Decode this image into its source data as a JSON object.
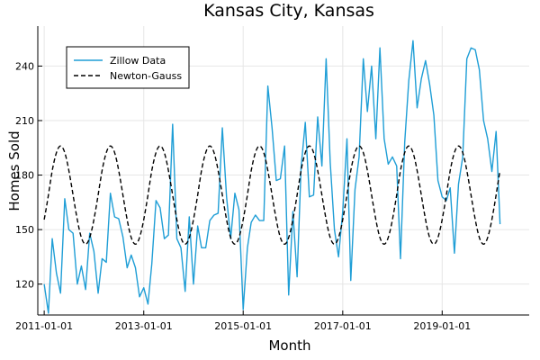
{
  "chart_data": {
    "type": "line",
    "title": "Kansas City, Kansas",
    "xlabel": "Month",
    "ylabel": "Homes Sold",
    "x_start": "2011-01-01",
    "x_step": "1 month",
    "xlim": [
      "2010-11-15",
      "2020-10-01"
    ],
    "ylim": [
      103,
      262
    ],
    "xticks": [
      "2011-01-01",
      "2013-01-01",
      "2015-01-01",
      "2017-01-01",
      "2019-01-01"
    ],
    "yticks": [
      120,
      150,
      180,
      210,
      240
    ],
    "grid": true,
    "legend_position": "top-left",
    "series": [
      {
        "name": "Zillow Data",
        "color": "#1f9ed6",
        "style": "solid",
        "values": [
          120,
          104,
          145,
          126,
          115,
          167,
          150,
          148,
          120,
          130,
          117,
          148,
          138,
          115,
          134,
          132,
          170,
          157,
          156,
          146,
          129,
          136,
          129,
          113,
          118,
          109,
          131,
          166,
          162,
          145,
          147,
          208,
          145,
          140,
          116,
          157,
          120,
          152,
          140,
          140,
          155,
          158,
          159,
          206,
          168,
          145,
          170,
          161,
          106,
          140,
          154,
          158,
          155,
          155,
          229,
          206,
          177,
          178,
          196,
          114,
          160,
          124,
          184,
          209,
          168,
          169,
          212,
          185,
          244,
          187,
          150,
          135,
          160,
          200,
          122,
          172,
          190,
          244,
          215,
          240,
          200,
          250,
          200,
          186,
          190,
          185,
          134,
          198,
          232,
          254,
          217,
          233,
          243,
          230,
          213,
          177,
          168,
          166,
          173,
          137,
          175,
          190,
          244,
          250,
          249,
          238,
          210,
          200,
          182,
          204,
          153
        ]
      },
      {
        "name": "Newton-Gauss",
        "color": "#000000",
        "style": "dashed",
        "amplitude": 27,
        "offset": 169,
        "period_months": 12,
        "phase_month": 4
      }
    ]
  }
}
